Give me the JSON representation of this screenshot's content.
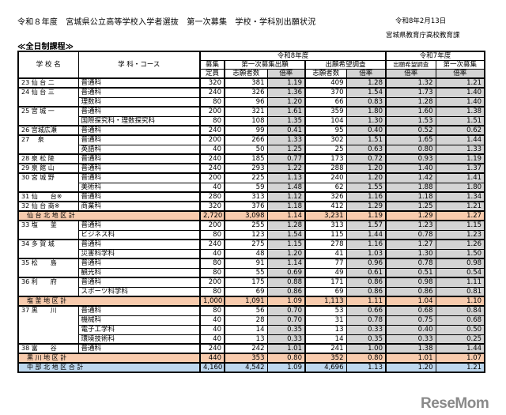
{
  "header": {
    "title": "令和８年度　宮城県公立高等学校入学者選抜　第一次募集　学校・学科別出願状況",
    "date": "令和8年2月13日",
    "department": "宮城県教育庁高校教育課",
    "section": "≪全日制課程≫"
  },
  "columns": {
    "school": "学 校 名",
    "subject": "学 科・コース",
    "r8": "令和8年度",
    "r7": "令和7年度",
    "capacity_top": "募集",
    "capacity_bottom": "定員",
    "first": "第一次募集出願",
    "survey": "出願希望調査",
    "applicants": "志願者数",
    "rate": "倍率",
    "r7_survey": "出願希望調査",
    "r7_first": "第一次募集"
  },
  "colors": {
    "subtotal": "#f8cbad",
    "total": "#bdd7ee",
    "rate_cell": "#d4d4d4"
  },
  "groups": [
    {
      "school": "23 仙 台 二",
      "rows": [
        [
          "普通科",
          "320",
          "381",
          "1.19",
          "409",
          "1.28",
          "1.32",
          "1.21"
        ]
      ]
    },
    {
      "school": "24 仙 台 三",
      "rows": [
        [
          "普通科",
          "240",
          "326",
          "1.36",
          "370",
          "1.54",
          "1.73",
          "1.40"
        ],
        [
          "理数科",
          "80",
          "96",
          "1.20",
          "66",
          "0.83",
          "1.28",
          "1.40"
        ]
      ]
    },
    {
      "school": "25 宮 城 一",
      "rows": [
        [
          "普通科",
          "200",
          "321",
          "1.61",
          "359",
          "1.80",
          "1.60",
          "1.38"
        ],
        [
          "国際探究科・理数探究科",
          "80",
          "108",
          "1.35",
          "104",
          "1.30",
          "1.53",
          "1.51"
        ]
      ]
    },
    {
      "school": "26 宮城広瀬",
      "rows": [
        [
          "普通科",
          "240",
          "99",
          "0.41",
          "95",
          "0.40",
          "0.52",
          "0.62"
        ]
      ]
    },
    {
      "school": "27 　泉",
      "rows": [
        [
          "普通科",
          "200",
          "266",
          "1.33",
          "302",
          "1.51",
          "1.65",
          "1.44"
        ],
        [
          "英語科",
          "40",
          "50",
          "1.25",
          "25",
          "0.63",
          "0.80",
          "1.33"
        ]
      ]
    },
    {
      "school": "28 泉 松 陵",
      "rows": [
        [
          "普通科",
          "240",
          "185",
          "0.77",
          "173",
          "0.72",
          "0.93",
          "1.19"
        ]
      ]
    },
    {
      "school": "29 泉 館 山",
      "rows": [
        [
          "普通科",
          "240",
          "293",
          "1.22",
          "288",
          "1.20",
          "1.40",
          "1.37"
        ]
      ]
    },
    {
      "school": "30 宮 城 野",
      "rows": [
        [
          "普通科",
          "200",
          "225",
          "1.13",
          "240",
          "1.20",
          "1.42",
          "1.41"
        ],
        [
          "美術科",
          "40",
          "59",
          "1.48",
          "62",
          "1.55",
          "1.88",
          "1.80"
        ]
      ]
    },
    {
      "school": "31 仙　　台※",
      "rows": [
        [
          "普通科",
          "280",
          "313",
          "1.12",
          "326",
          "1.16",
          "1.18",
          "1.34"
        ]
      ]
    },
    {
      "school": "32 仙 台 商※",
      "rows": [
        [
          "商業科",
          "320",
          "376",
          "1.18",
          "412",
          "1.29",
          "1.25",
          "1.21"
        ]
      ]
    },
    {
      "subtotal": "仙 台 北 地 区 計",
      "vals": [
        "2,720",
        "3,098",
        "1.14",
        "3,231",
        "1.19",
        "1.29",
        "1.27"
      ]
    },
    {
      "school": "33 塩　　釜",
      "rows": [
        [
          "普通科",
          "200",
          "255",
          "1.28",
          "313",
          "1.57",
          "1.23",
          "1.15"
        ],
        [
          "ビジネス科",
          "80",
          "123",
          "1.54",
          "115",
          "1.44",
          "0.78",
          "1.23"
        ]
      ]
    },
    {
      "school": "34 多 賀 城",
      "rows": [
        [
          "普通科",
          "240",
          "275",
          "1.15",
          "278",
          "1.16",
          "1.27",
          "1.26"
        ],
        [
          "災害科学科",
          "40",
          "48",
          "1.20",
          "41",
          "1.03",
          "1.30",
          "1.50"
        ]
      ]
    },
    {
      "school": "35 松　　島",
      "rows": [
        [
          "普通科",
          "80",
          "91",
          "1.14",
          "77",
          "0.96",
          "0.78",
          "0.98"
        ],
        [
          "観光科",
          "80",
          "55",
          "0.69",
          "49",
          "0.61",
          "0.51",
          "0.54"
        ]
      ]
    },
    {
      "school": "36 利　　府",
      "rows": [
        [
          "普通科",
          "200",
          "175",
          "0.88",
          "171",
          "0.86",
          "0.98",
          "1.11"
        ],
        [
          "スポーツ科学科",
          "80",
          "69",
          "0.86",
          "69",
          "0.86",
          "0.86",
          "0.81"
        ]
      ]
    },
    {
      "subtotal": "塩 釜 地 区 計",
      "vals": [
        "1,000",
        "1,091",
        "1.09",
        "1,113",
        "1.11",
        "1.04",
        "1.10"
      ]
    },
    {
      "school": "37 黒　　川",
      "rows": [
        [
          "普通科",
          "80",
          "56",
          "0.70",
          "53",
          "0.66",
          "0.68",
          "0.84"
        ],
        [
          "機械科",
          "40",
          "28",
          "0.70",
          "31",
          "0.78",
          "0.75",
          "0.68"
        ],
        [
          "電子工学科",
          "40",
          "14",
          "0.35",
          "13",
          "0.33",
          "0.40",
          "0.50"
        ],
        [
          "環境技術科",
          "40",
          "13",
          "0.33",
          "14",
          "0.35",
          "0.33",
          "0.25"
        ]
      ]
    },
    {
      "school": "38 富　　谷",
      "rows": [
        [
          "普通科",
          "240",
          "242",
          "1.01",
          "241",
          "1.00",
          "1.38",
          "1.44"
        ]
      ]
    },
    {
      "subtotal": "黒 川 地 区 計",
      "vals": [
        "440",
        "353",
        "0.80",
        "352",
        "0.80",
        "1.01",
        "1.07"
      ]
    },
    {
      "total": "中 部 北 地 区 合 計",
      "vals": [
        "4,160",
        "4,542",
        "1.09",
        "4,696",
        "1.13",
        "1.20",
        "1.21"
      ]
    }
  ],
  "logo": "ReseMom"
}
